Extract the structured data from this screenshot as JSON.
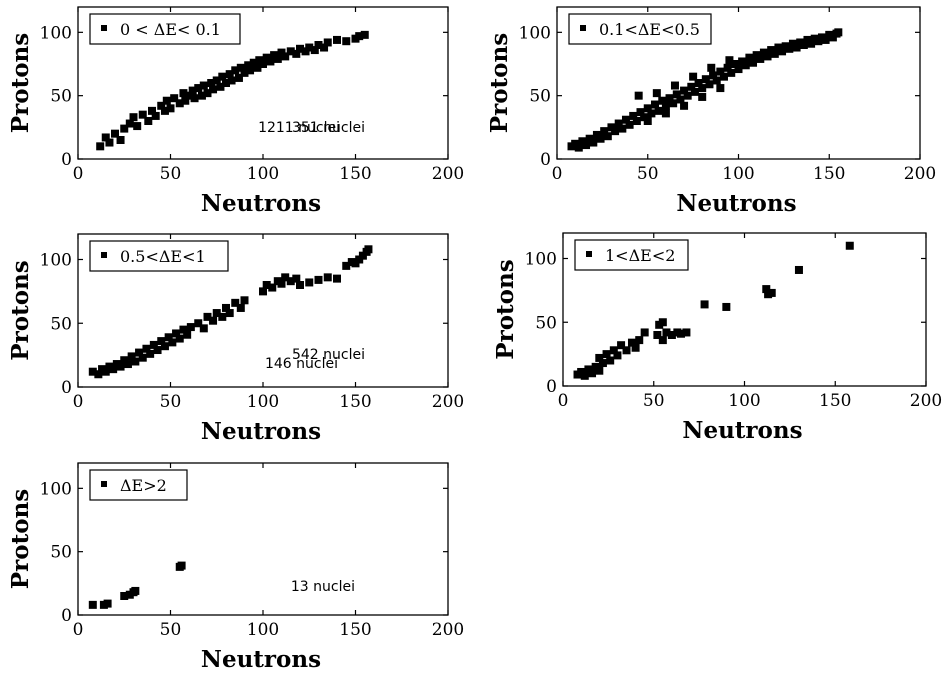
{
  "chart_data": [
    {
      "type": "scatter",
      "legend": "0 < ΔE< 0.1",
      "annotation": "351 nuclei",
      "xlabel": "Neutrons",
      "ylabel": "Protons",
      "xlim": [
        0,
        200
      ],
      "ylim": [
        0,
        120
      ],
      "xticks": [
        "0",
        "50",
        "100",
        "150",
        "200"
      ],
      "yticks": [
        "0",
        "50",
        "100"
      ],
      "grid": false,
      "legend_position": "top-left",
      "series": [
        {
          "name": "0 < ΔE< 0.1",
          "points": [
            [
              12,
              10
            ],
            [
              15,
              17
            ],
            [
              17,
              13
            ],
            [
              20,
              20
            ],
            [
              23,
              15
            ],
            [
              25,
              24
            ],
            [
              28,
              28
            ],
            [
              30,
              33
            ],
            [
              32,
              26
            ],
            [
              35,
              35
            ],
            [
              38,
              30
            ],
            [
              40,
              38
            ],
            [
              42,
              34
            ],
            [
              45,
              42
            ],
            [
              47,
              38
            ],
            [
              48,
              46
            ],
            [
              50,
              40
            ],
            [
              52,
              48
            ],
            [
              55,
              44
            ],
            [
              57,
              52
            ],
            [
              58,
              46
            ],
            [
              60,
              50
            ],
            [
              62,
              54
            ],
            [
              63,
              48
            ],
            [
              65,
              56
            ],
            [
              67,
              50
            ],
            [
              68,
              58
            ],
            [
              70,
              52
            ],
            [
              72,
              60
            ],
            [
              73,
              55
            ],
            [
              75,
              62
            ],
            [
              77,
              57
            ],
            [
              78,
              65
            ],
            [
              80,
              60
            ],
            [
              82,
              67
            ],
            [
              83,
              62
            ],
            [
              85,
              70
            ],
            [
              87,
              64
            ],
            [
              88,
              72
            ],
            [
              90,
              68
            ],
            [
              92,
              74
            ],
            [
              93,
              70
            ],
            [
              95,
              76
            ],
            [
              97,
              72
            ],
            [
              98,
              78
            ],
            [
              100,
              75
            ],
            [
              102,
              80
            ],
            [
              104,
              77
            ],
            [
              106,
              82
            ],
            [
              108,
              79
            ],
            [
              110,
              84
            ],
            [
              112,
              81
            ],
            [
              115,
              85
            ],
            [
              118,
              83
            ],
            [
              120,
              87
            ],
            [
              123,
              85
            ],
            [
              125,
              88
            ],
            [
              128,
              86
            ],
            [
              130,
              90
            ],
            [
              133,
              88
            ],
            [
              135,
              92
            ],
            [
              140,
              94
            ],
            [
              145,
              93
            ],
            [
              150,
              95
            ],
            [
              152,
              97
            ],
            [
              155,
              98
            ]
          ]
        }
      ]
    },
    {
      "type": "scatter",
      "legend": "0.1<ΔE<0.5",
      "annotation": "1211 nuclei",
      "xlabel": "Neutrons",
      "ylabel": "Protons",
      "xlim": [
        0,
        200
      ],
      "ylim": [
        0,
        120
      ],
      "xticks": [
        "0",
        "50",
        "100",
        "150",
        "200"
      ],
      "yticks": [
        "0",
        "50",
        "100"
      ],
      "grid": false,
      "legend_position": "top-left",
      "series": [
        {
          "name": "0.1<ΔE<0.5",
          "points": [
            [
              8,
              10
            ],
            [
              10,
              12
            ],
            [
              12,
              9
            ],
            [
              14,
              14
            ],
            [
              16,
              11
            ],
            [
              18,
              16
            ],
            [
              20,
              13
            ],
            [
              22,
              19
            ],
            [
              24,
              16
            ],
            [
              26,
              22
            ],
            [
              28,
              18
            ],
            [
              30,
              25
            ],
            [
              32,
              22
            ],
            [
              34,
              28
            ],
            [
              36,
              24
            ],
            [
              38,
              31
            ],
            [
              40,
              27
            ],
            [
              42,
              34
            ],
            [
              44,
              30
            ],
            [
              46,
              37
            ],
            [
              48,
              33
            ],
            [
              50,
              40
            ],
            [
              52,
              36
            ],
            [
              54,
              43
            ],
            [
              56,
              38
            ],
            [
              58,
              46
            ],
            [
              60,
              42
            ],
            [
              62,
              48
            ],
            [
              64,
              44
            ],
            [
              66,
              51
            ],
            [
              68,
              47
            ],
            [
              70,
              54
            ],
            [
              72,
              50
            ],
            [
              74,
              57
            ],
            [
              76,
              53
            ],
            [
              78,
              60
            ],
            [
              80,
              56
            ],
            [
              82,
              63
            ],
            [
              84,
              59
            ],
            [
              86,
              66
            ],
            [
              88,
              62
            ],
            [
              90,
              69
            ],
            [
              92,
              65
            ],
            [
              94,
              72
            ],
            [
              96,
              68
            ],
            [
              98,
              75
            ],
            [
              100,
              71
            ],
            [
              102,
              77
            ],
            [
              104,
              74
            ],
            [
              106,
              80
            ],
            [
              108,
              76
            ],
            [
              110,
              82
            ],
            [
              112,
              79
            ],
            [
              114,
              84
            ],
            [
              116,
              81
            ],
            [
              118,
              86
            ],
            [
              120,
              83
            ],
            [
              122,
              88
            ],
            [
              124,
              85
            ],
            [
              126,
              89
            ],
            [
              128,
              87
            ],
            [
              130,
              91
            ],
            [
              132,
              88
            ],
            [
              134,
              92
            ],
            [
              136,
              90
            ],
            [
              138,
              94
            ],
            [
              140,
              91
            ],
            [
              142,
              95
            ],
            [
              144,
              93
            ],
            [
              146,
              96
            ],
            [
              148,
              94
            ],
            [
              150,
              98
            ],
            [
              152,
              96
            ],
            [
              154,
              99
            ],
            [
              155,
              100
            ],
            [
              45,
              50
            ],
            [
              55,
              52
            ],
            [
              65,
              58
            ],
            [
              75,
              65
            ],
            [
              85,
              72
            ],
            [
              95,
              78
            ],
            [
              50,
              30
            ],
            [
              60,
              36
            ],
            [
              70,
              42
            ],
            [
              80,
              49
            ],
            [
              90,
              56
            ]
          ]
        }
      ]
    },
    {
      "type": "scatter",
      "legend": "0.5<ΔE<1",
      "annotation": "542 nuclei",
      "xlabel": "Neutrons",
      "ylabel": "Protons",
      "xlim": [
        0,
        200
      ],
      "ylim": [
        0,
        120
      ],
      "xticks": [
        "0",
        "50",
        "100",
        "150",
        "200"
      ],
      "yticks": [
        "0",
        "50",
        "100"
      ],
      "grid": false,
      "legend_position": "top-left",
      "series": [
        {
          "name": "0.5<ΔE<1",
          "points": [
            [
              8,
              12
            ],
            [
              11,
              10
            ],
            [
              13,
              14
            ],
            [
              15,
              12
            ],
            [
              17,
              16
            ],
            [
              19,
              14
            ],
            [
              21,
              18
            ],
            [
              23,
              16
            ],
            [
              25,
              21
            ],
            [
              27,
              18
            ],
            [
              29,
              24
            ],
            [
              31,
              20
            ],
            [
              33,
              27
            ],
            [
              35,
              23
            ],
            [
              37,
              30
            ],
            [
              39,
              26
            ],
            [
              41,
              33
            ],
            [
              43,
              29
            ],
            [
              45,
              36
            ],
            [
              47,
              32
            ],
            [
              49,
              39
            ],
            [
              51,
              35
            ],
            [
              53,
              42
            ],
            [
              55,
              38
            ],
            [
              57,
              45
            ],
            [
              59,
              41
            ],
            [
              61,
              47
            ],
            [
              65,
              50
            ],
            [
              68,
              46
            ],
            [
              70,
              55
            ],
            [
              73,
              52
            ],
            [
              75,
              58
            ],
            [
              78,
              55
            ],
            [
              80,
              62
            ],
            [
              82,
              58
            ],
            [
              85,
              66
            ],
            [
              88,
              62
            ],
            [
              90,
              68
            ],
            [
              100,
              75
            ],
            [
              102,
              80
            ],
            [
              105,
              78
            ],
            [
              108,
              83
            ],
            [
              110,
              81
            ],
            [
              112,
              86
            ],
            [
              115,
              83
            ],
            [
              118,
              85
            ],
            [
              120,
              80
            ],
            [
              125,
              82
            ],
            [
              130,
              84
            ],
            [
              135,
              86
            ],
            [
              140,
              85
            ],
            [
              150,
              97
            ],
            [
              152,
              100
            ],
            [
              154,
              103
            ],
            [
              156,
              106
            ],
            [
              157,
              108
            ],
            [
              145,
              95
            ],
            [
              148,
              98
            ]
          ]
        }
      ]
    },
    {
      "type": "scatter",
      "legend": "1<ΔE<2",
      "annotation": "146 nuclei",
      "xlabel": "Neutrons",
      "ylabel": "Protons",
      "xlim": [
        0,
        200
      ],
      "ylim": [
        0,
        120
      ],
      "xticks": [
        "0",
        "50",
        "100",
        "150",
        "200"
      ],
      "yticks": [
        "0",
        "50",
        "100"
      ],
      "grid": false,
      "legend_position": "top-left",
      "series": [
        {
          "name": "1<ΔE<2",
          "points": [
            [
              8,
              9
            ],
            [
              10,
              11
            ],
            [
              12,
              8
            ],
            [
              14,
              13
            ],
            [
              16,
              10
            ],
            [
              18,
              15
            ],
            [
              20,
              12
            ],
            [
              20,
              22
            ],
            [
              22,
              18
            ],
            [
              24,
              25
            ],
            [
              26,
              20
            ],
            [
              28,
              28
            ],
            [
              30,
              24
            ],
            [
              32,
              32
            ],
            [
              35,
              28
            ],
            [
              38,
              34
            ],
            [
              40,
              30
            ],
            [
              42,
              36
            ],
            [
              45,
              42
            ],
            [
              52,
              40
            ],
            [
              53,
              48
            ],
            [
              55,
              36
            ],
            [
              55,
              50
            ],
            [
              57,
              42
            ],
            [
              60,
              40
            ],
            [
              63,
              42
            ],
            [
              65,
              41
            ],
            [
              68,
              42
            ],
            [
              78,
              64
            ],
            [
              90,
              62
            ],
            [
              112,
              76
            ],
            [
              113,
              72
            ],
            [
              115,
              73
            ],
            [
              130,
              91
            ],
            [
              158,
              110
            ]
          ]
        }
      ]
    },
    {
      "type": "scatter",
      "legend": "ΔE>2",
      "annotation": "13 nuclei",
      "xlabel": "Neutrons",
      "ylabel": "Protons",
      "xlim": [
        0,
        200
      ],
      "ylim": [
        0,
        120
      ],
      "xticks": [
        "0",
        "50",
        "100",
        "150",
        "200"
      ],
      "yticks": [
        "0",
        "50",
        "100"
      ],
      "grid": false,
      "legend_position": "top-left",
      "series": [
        {
          "name": "ΔE>2",
          "points": [
            [
              8,
              8
            ],
            [
              14,
              8
            ],
            [
              16,
              9
            ],
            [
              25,
              15
            ],
            [
              28,
              16
            ],
            [
              30,
              18
            ],
            [
              31,
              19
            ],
            [
              55,
              38
            ],
            [
              56,
              39
            ]
          ]
        }
      ]
    }
  ]
}
